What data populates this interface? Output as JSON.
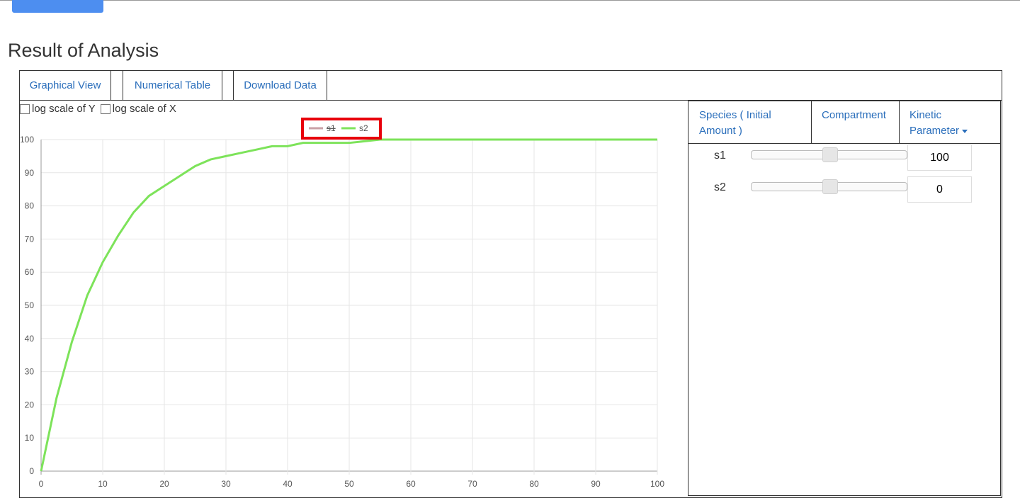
{
  "title": "Result of Analysis",
  "tabs": [
    "Graphical View",
    "Numerical Table",
    "Download Data"
  ],
  "checkboxes": [
    "log scale of Y",
    "log scale of X"
  ],
  "chart_data": {
    "type": "line",
    "x": [
      0,
      2.5,
      5,
      7.5,
      10,
      12.5,
      15,
      17.5,
      20,
      22.5,
      25,
      27.5,
      30,
      32.5,
      35,
      37.5,
      40,
      42.5,
      45,
      47.5,
      50,
      55,
      60,
      65,
      70,
      75,
      80,
      85,
      90,
      95,
      100
    ],
    "series": [
      {
        "name": "s1",
        "color": "#c9a0a6",
        "hidden": true
      },
      {
        "name": "s2",
        "color": "#7de35a",
        "values": [
          0,
          22,
          39,
          53,
          63,
          71,
          78,
          83,
          86,
          89,
          92,
          94,
          95,
          96,
          97,
          98,
          98,
          99,
          99,
          99,
          99,
          100,
          100,
          100,
          100,
          100,
          100,
          100,
          100,
          100,
          100
        ]
      }
    ],
    "xlim": [
      0,
      100
    ],
    "ylim": [
      0,
      100
    ],
    "xticks": [
      0,
      10,
      20,
      30,
      40,
      50,
      60,
      70,
      80,
      90,
      100
    ],
    "yticks": [
      0,
      10,
      20,
      30,
      40,
      50,
      60,
      70,
      80,
      90,
      100
    ],
    "grid": true
  },
  "side_tabs": [
    "Species ( Initial Amount )",
    "Compartment",
    "Kinetic Parameter"
  ],
  "species": [
    {
      "name": "s1",
      "value": 100
    },
    {
      "name": "s2",
      "value": 0
    }
  ]
}
